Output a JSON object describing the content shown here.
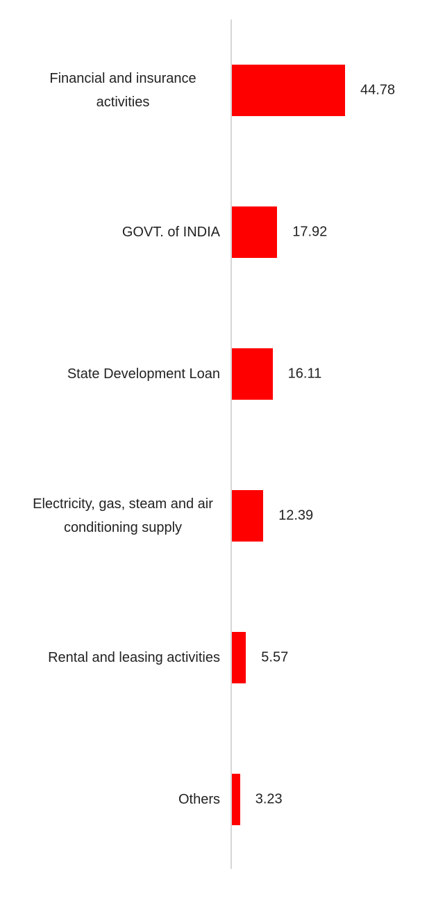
{
  "chart_data": {
    "type": "bar",
    "orientation": "horizontal",
    "categories": [
      "Financial and insurance activities",
      "GOVT. of INDIA",
      "State Development Loan",
      "Electricity, gas, steam and air conditioning supply",
      "Rental and leasing activities",
      "Others"
    ],
    "values": [
      44.78,
      17.92,
      16.11,
      12.39,
      5.57,
      3.23
    ],
    "color": "#ff0000"
  }
}
